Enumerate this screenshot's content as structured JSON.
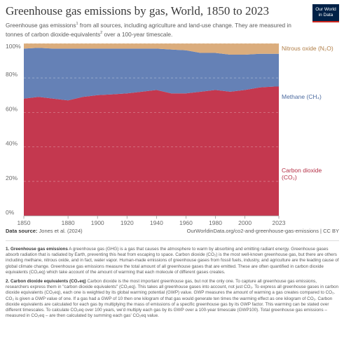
{
  "header": {
    "title": "Greenhouse gas emissions by gas, World, 1850 to 2023",
    "subtitle_a": "Greenhouse gas emissions",
    "subtitle_sup1": "1",
    "subtitle_b": " from all sources, including agriculture and land-use change. They are measured in tonnes of carbon dioxide-equivalents",
    "subtitle_sup2": "2",
    "subtitle_c": " over a 100-year timescale.",
    "logo_line1": "Our World",
    "logo_line2": "in Data"
  },
  "chart_data": {
    "type": "area",
    "stacked": "percent",
    "x": [
      1850,
      1860,
      1870,
      1880,
      1890,
      1900,
      1910,
      1920,
      1930,
      1940,
      1950,
      1960,
      1970,
      1980,
      1990,
      2000,
      2010,
      2020,
      2023
    ],
    "series": [
      {
        "name": "Carbon dioxide (CO₂)",
        "label_lines": [
          "Carbon dioxide",
          "(CO₂)"
        ],
        "color": "#c4384f",
        "values": [
          68,
          69,
          68,
          67,
          69,
          70,
          70.5,
          71,
          72,
          73,
          71,
          71,
          72,
          73,
          72,
          73,
          74.5,
          75,
          75
        ]
      },
      {
        "name": "Methane (CH₄)",
        "label_lines": [
          "Methane (CH₄)"
        ],
        "color": "#6581b6",
        "values": [
          29,
          28.5,
          29,
          30,
          28,
          27,
          26.5,
          26,
          25,
          24,
          25.5,
          25,
          22.5,
          21.5,
          21.5,
          20.5,
          19.5,
          19,
          19
        ]
      },
      {
        "name": "Nitrous oxide (N₂O)",
        "label_lines": [
          "Nitrous oxide (N₂O)"
        ],
        "color": "#dbad7d",
        "values": [
          3,
          2.5,
          3,
          3,
          3,
          3,
          3,
          3,
          3,
          3,
          3.5,
          4,
          5.5,
          5.5,
          6.5,
          6.5,
          6,
          6,
          6
        ]
      }
    ],
    "x_ticks": [
      "1850",
      "1880",
      "1900",
      "1920",
      "1940",
      "1960",
      "1980",
      "2000",
      "2023"
    ],
    "y_ticks": [
      "0%",
      "20%",
      "40%",
      "60%",
      "80%",
      "100%"
    ],
    "ylim": [
      0,
      100
    ],
    "grid": true
  },
  "footer": {
    "source_label": "Data source:",
    "source_text": " Jones et al. (2024)",
    "url": "OurWorldinData.org/co2-and-greenhouse-gas-emissions | CC BY"
  },
  "notes": {
    "n1_title": "1. Greenhouse gas emissions",
    "n1_body": " A greenhouse gas (GHG) is a gas that causes the atmosphere to warm by absorbing and emitting radiant energy. Greenhouse gases absorb radiation that is radiated by Earth, preventing this heat from escaping to space. Carbon dioxide (CO₂) is the most well-known greenhouse gas, but there are others including methane, nitrous oxide, and in fact, water vapor. Human-made emissions of greenhouse gases from fossil fuels, industry, and agriculture are the leading cause of global climate change. Greenhouse gas emissions measure the total amount of all greenhouse gases that are emitted. These are often quantified in carbon dioxide equivalents (CO₂eq) which take account of the amount of warming that each molecule of different gases creates.",
    "n2_title": "2. Carbon dioxide equivalents (CO₂eq)",
    "n2_body": " Carbon dioxide is the most important greenhouse gas, but not the only one. To capture all greenhouse gas emissions, researchers express them in \"carbon dioxide equivalents\" (CO₂eq). This takes all greenhouse gases into account, not just CO₂. To express all greenhouse gases in carbon dioxide equivalents (CO₂eq), each one is weighted by its global warming potential (GWP) value. GWP measures the amount of warming a gas creates compared to CO₂. CO₂ is given a GWP value of one. If a gas had a GWP of 10 then one kilogram of that gas would generate ten times the warming effect as one kilogram of CO₂. Carbon dioxide equivalents are calculated for each gas by multiplying the mass of emissions of a specific greenhouse gas by its GWP factor. This warming can be stated over different timescales. To calculate CO₂eq over 100 years, we'd multiply each gas by its GWP over a 100-year timescale (GWP100). Total greenhouse gas emissions – measured in CO₂eq – are then calculated by summing each gas' CO₂eq value."
  }
}
